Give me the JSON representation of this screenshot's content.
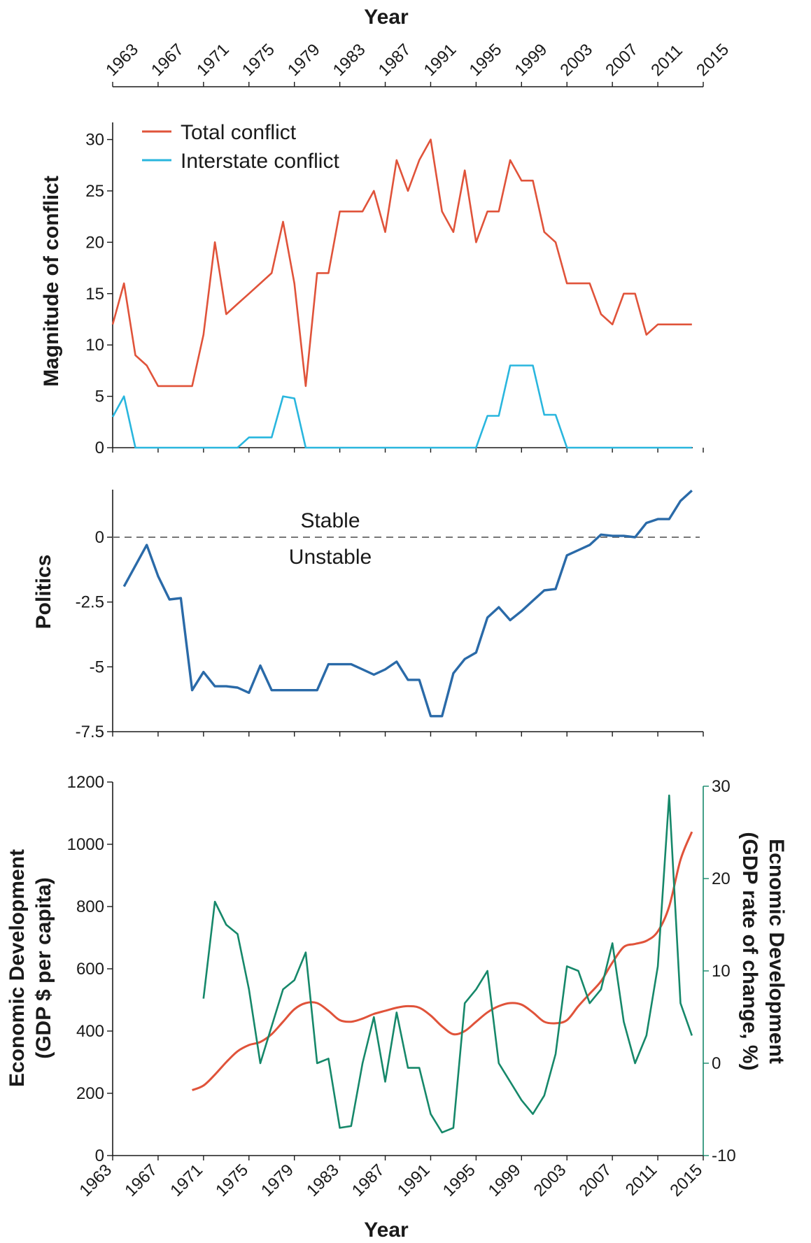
{
  "colors": {
    "total": "#e0533a",
    "interstate": "#29b6de",
    "politics": "#2a6aa8",
    "gdp": "#e0533a",
    "gdp_rate": "#16886a",
    "axis": "#1a1a1a",
    "reference": "#777777"
  },
  "top_axis": {
    "title": "Year",
    "tick_labels": [
      "1963",
      "1967",
      "1971",
      "1975",
      "1979",
      "1983",
      "1987",
      "1991",
      "1995",
      "1999",
      "2003",
      "2007",
      "2011",
      "2015"
    ]
  },
  "bottom_axis": {
    "title": "Year",
    "tick_labels": [
      "1963",
      "1967",
      "1971",
      "1975",
      "1979",
      "1983",
      "1987",
      "1991",
      "1995",
      "1999",
      "2003",
      "2007",
      "2011",
      "2015"
    ]
  },
  "chart_data": [
    {
      "type": "line",
      "panel": "conflict",
      "ylabel": "Magnitude of conflict",
      "xlim": [
        1963,
        2015
      ],
      "ylim": [
        0,
        31
      ],
      "yticks": [
        0,
        5,
        10,
        15,
        20,
        25,
        30
      ],
      "ytick_labels": [
        "0",
        "5",
        "10",
        "15",
        "20",
        "25",
        "30"
      ],
      "legend_position": "top-left",
      "series": [
        {
          "name": "Total conflict",
          "color_key": "total",
          "x": [
            1963,
            1964,
            1965,
            1966,
            1967,
            1968,
            1969,
            1970,
            1971,
            1972,
            1973,
            1974,
            1975,
            1976,
            1977,
            1978,
            1979,
            1980,
            1981,
            1982,
            1983,
            1984,
            1985,
            1986,
            1987,
            1988,
            1989,
            1990,
            1991,
            1992,
            1993,
            1994,
            1995,
            1996,
            1997,
            1998,
            1999,
            2000,
            2001,
            2002,
            2003,
            2004,
            2005,
            2006,
            2007,
            2008,
            2009,
            2010,
            2011,
            2012,
            2013,
            2014
          ],
          "y": [
            12,
            16,
            9,
            8,
            6,
            6,
            6,
            6,
            11,
            20,
            13,
            14,
            15,
            16,
            17,
            22,
            16,
            6,
            17,
            17,
            23,
            23,
            23,
            25,
            21,
            28,
            25,
            28,
            30,
            23,
            21,
            27,
            20,
            23,
            23,
            28,
            26,
            26,
            21,
            20,
            16,
            16,
            16,
            13,
            12,
            15,
            15,
            11,
            12,
            12,
            12,
            12
          ]
        },
        {
          "name": "Interstate conflict",
          "color_key": "interstate",
          "x": [
            1963,
            1964,
            1965,
            1966,
            1967,
            1968,
            1969,
            1970,
            1971,
            1972,
            1973,
            1974,
            1975,
            1976,
            1977,
            1978,
            1979,
            1980,
            1981,
            1982,
            1983,
            1984,
            1985,
            1986,
            1987,
            1988,
            1989,
            1990,
            1991,
            1992,
            1993,
            1994,
            1995,
            1996,
            1997,
            1998,
            1999,
            2000,
            2001,
            2002,
            2003,
            2004,
            2005,
            2006,
            2007,
            2008,
            2009,
            2010,
            2011,
            2012,
            2013,
            2014
          ],
          "y": [
            3,
            5,
            0,
            0,
            0,
            0,
            0,
            0,
            0,
            0,
            0,
            0,
            1,
            1,
            1,
            5,
            4.8,
            0,
            0,
            0,
            0,
            0,
            0,
            0,
            0,
            0,
            0,
            0,
            0,
            0,
            0,
            0,
            0,
            3.1,
            3.1,
            8,
            8,
            8,
            3.2,
            3.2,
            0,
            0,
            0,
            0,
            0,
            0,
            0,
            0,
            0,
            0,
            0,
            0
          ]
        }
      ]
    },
    {
      "type": "line",
      "panel": "politics",
      "ylabel": "Politics",
      "xlim": [
        1963,
        2015
      ],
      "ylim": [
        -7.5,
        2
      ],
      "yticks": [
        0,
        -2.5,
        -5,
        -7.5
      ],
      "ytick_labels": [
        "0",
        "-2.5",
        "-5",
        "-7.5"
      ],
      "reference_line": 0,
      "annotations": {
        "above": "Stable",
        "below": "Unstable"
      },
      "series": [
        {
          "name": "",
          "color_key": "politics",
          "x": [
            1964,
            1966,
            1967,
            1968,
            1969,
            1970,
            1971,
            1972,
            1973,
            1974,
            1975,
            1976,
            1977,
            1978,
            1979,
            1980,
            1981,
            1982,
            1983,
            1984,
            1985,
            1986,
            1987,
            1988,
            1989,
            1990,
            1991,
            1992,
            1993,
            1994,
            1995,
            1996,
            1997,
            1998,
            1999,
            2000,
            2001,
            2002,
            2003,
            2004,
            2005,
            2006,
            2007,
            2008,
            2009,
            2010,
            2011,
            2012,
            2013,
            2014
          ],
          "y": [
            -1.9,
            -0.3,
            -1.5,
            -2.4,
            -2.35,
            -5.9,
            -5.2,
            -5.75,
            -5.75,
            -5.8,
            -6.0,
            -4.95,
            -5.9,
            -5.9,
            -5.9,
            -5.9,
            -5.9,
            -4.9,
            -4.9,
            -4.9,
            -5.1,
            -5.3,
            -5.1,
            -4.8,
            -5.5,
            -5.5,
            -6.9,
            -6.9,
            -5.25,
            -4.7,
            -4.45,
            -3.1,
            -2.7,
            -3.2,
            -2.85,
            -2.45,
            -2.05,
            -2.0,
            -0.7,
            -0.5,
            -0.3,
            0.1,
            0.05,
            0.05,
            0.0,
            0.55,
            0.7,
            0.7,
            1.4,
            1.8
          ]
        }
      ]
    },
    {
      "type": "line",
      "panel": "economic",
      "ylabel": [
        "Economic Development",
        "(GDP $ per capita)"
      ],
      "y2label": [
        "Ecnomic Development",
        "(GDP rate of change, %)"
      ],
      "xlim": [
        1963,
        2015
      ],
      "ylim": [
        0,
        1200
      ],
      "y2lim": [
        -10,
        30
      ],
      "yticks": [
        0,
        200,
        400,
        600,
        800,
        1000,
        1200
      ],
      "ytick_labels": [
        "0",
        "200",
        "400",
        "600",
        "800",
        "1000",
        "1200"
      ],
      "y2ticks": [
        -10,
        0,
        10,
        20,
        30
      ],
      "y2tick_labels": [
        "-10",
        "0",
        "10",
        "20",
        "30"
      ],
      "series": [
        {
          "name": "",
          "axis": "left",
          "smooth": true,
          "color_key": "gdp",
          "x": [
            1970,
            1971,
            1972,
            1973,
            1974,
            1975,
            1976,
            1977,
            1978,
            1979,
            1980,
            1981,
            1982,
            1983,
            1984,
            1985,
            1986,
            1987,
            1988,
            1989,
            1990,
            1991,
            1992,
            1993,
            1994,
            1995,
            1996,
            1997,
            1998,
            1999,
            2000,
            2001,
            2002,
            2003,
            2004,
            2005,
            2006,
            2007,
            2008,
            2009,
            2010,
            2011,
            2012,
            2013,
            2014
          ],
          "y": [
            210,
            225,
            260,
            300,
            335,
            355,
            365,
            390,
            430,
            470,
            490,
            490,
            465,
            435,
            430,
            440,
            455,
            465,
            475,
            480,
            475,
            450,
            415,
            390,
            400,
            430,
            460,
            480,
            490,
            485,
            460,
            430,
            425,
            435,
            480,
            520,
            560,
            620,
            670,
            680,
            690,
            720,
            800,
            950,
            1040
          ]
        },
        {
          "name": "",
          "axis": "right",
          "color_key": "gdp_rate",
          "x": [
            1971,
            1972,
            1973,
            1974,
            1975,
            1976,
            1977,
            1978,
            1979,
            1980,
            1981,
            1982,
            1983,
            1984,
            1985,
            1986,
            1987,
            1988,
            1989,
            1990,
            1991,
            1992,
            1993,
            1994,
            1995,
            1996,
            1997,
            1998,
            1999,
            2000,
            2001,
            2002,
            2003,
            2004,
            2005,
            2006,
            2007,
            2008,
            2009,
            2010,
            2011,
            2012,
            2013,
            2014
          ],
          "y": [
            7,
            17.5,
            15,
            14,
            8,
            0,
            4,
            8,
            9,
            12,
            0,
            0.5,
            -7,
            -6.8,
            0,
            5,
            -2,
            5.5,
            -0.5,
            -0.5,
            -5.5,
            -7.5,
            -7,
            6.5,
            8,
            10,
            0,
            -2,
            -4,
            -5.5,
            -3.5,
            1,
            10.5,
            10,
            6.5,
            8,
            13,
            4.5,
            0,
            3,
            10.5,
            29,
            6.5,
            3
          ]
        }
      ]
    }
  ]
}
